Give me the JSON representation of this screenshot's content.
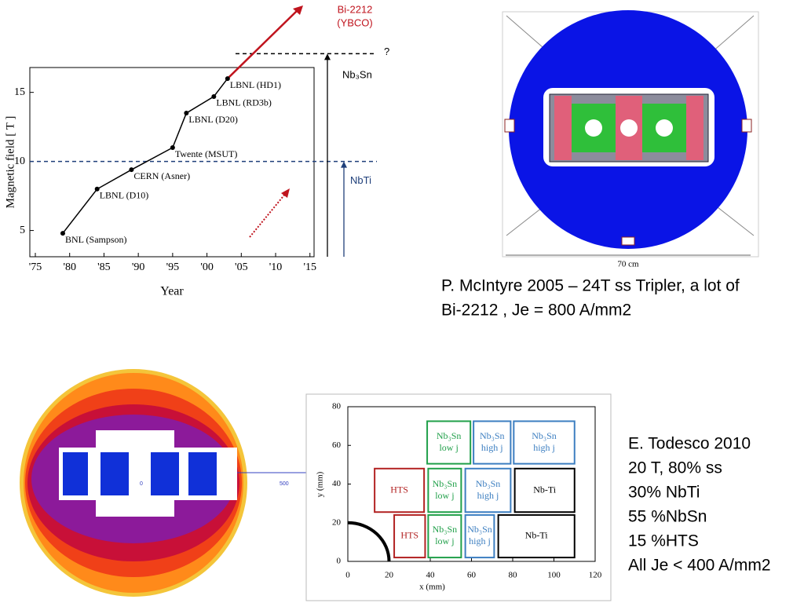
{
  "chart_data": [
    {
      "type": "line",
      "xlabel": "Year",
      "ylabel": "Magnetic field [ T ]",
      "x": [
        1979,
        1984,
        1989,
        1995,
        1997,
        2001,
        2003
      ],
      "values": [
        4.8,
        8,
        9.4,
        11,
        13.5,
        14.7,
        16
      ],
      "point_labels": [
        "BNL (Sampson)",
        "LBNL (D10)",
        "CERN (Asner)",
        "Twente (MSUT)",
        "LBNL (D20)",
        "LBNL (RD3b)",
        "LBNL (HD1)"
      ],
      "color": "#000000",
      "xlim": [
        1974.2,
        2015.6
      ],
      "ylim": [
        3.1,
        16.8
      ],
      "xticks": [
        {
          "value": 1975,
          "label": "'75"
        },
        {
          "value": 1980,
          "label": "'80"
        },
        {
          "value": 1985,
          "label": "'85"
        },
        {
          "value": 1990,
          "label": "'90"
        },
        {
          "value": 1995,
          "label": "'95"
        },
        {
          "value": 2000,
          "label": "'00"
        },
        {
          "value": 2005,
          "label": "'05"
        },
        {
          "value": 2010,
          "label": "'10"
        },
        {
          "value": 2015,
          "label": "'15"
        }
      ],
      "yticks": [
        5,
        10,
        15
      ],
      "reference_lines": [
        {
          "value": 10,
          "label": "NbTi",
          "color": "#1f3f7a"
        },
        {
          "value": 17.8,
          "label": "?",
          "color": "#000000",
          "arrow_label": "Nb₃Sn"
        }
      ],
      "trend_label": [
        "Bi-2212",
        "(YBCO)"
      ],
      "trend_color": "#c0141e"
    },
    {
      "type": "blocks",
      "xlabel": "x (mm)",
      "ylabel": "y (mm)",
      "xlim": [
        0,
        120
      ],
      "ylim": [
        0,
        80
      ],
      "xticks": [
        0,
        20,
        40,
        60,
        80,
        100,
        120
      ],
      "yticks": [
        0,
        20,
        40,
        60,
        80
      ],
      "aperture_radius": 20,
      "blocks": [
        {
          "label": [
            "HTS"
          ],
          "x": [
            13,
            37
          ],
          "y": [
            25.5,
            48
          ],
          "color": "#b22222"
        },
        {
          "label": [
            "HTS"
          ],
          "x": [
            22.5,
            37.5
          ],
          "y": [
            2,
            24
          ],
          "color": "#b22222"
        },
        {
          "label": [
            "Nb₃Sn",
            "low j"
          ],
          "x": [
            38.5,
            59.5
          ],
          "y": [
            50.5,
            72.5
          ],
          "color": "#21a04a"
        },
        {
          "label": [
            "Nb₃Sn",
            "low j"
          ],
          "x": [
            39,
            55
          ],
          "y": [
            25.5,
            48
          ],
          "color": "#21a04a"
        },
        {
          "label": [
            "Nb₃Sn",
            "low j"
          ],
          "x": [
            39,
            55
          ],
          "y": [
            2,
            24
          ],
          "color": "#21a04a"
        },
        {
          "label": [
            "Nb₃Sn",
            "high j"
          ],
          "x": [
            61,
            79
          ],
          "y": [
            50.5,
            72.5
          ],
          "color": "#3d7fc1"
        },
        {
          "label": [
            "Nb₃Sn",
            "high j"
          ],
          "x": [
            57,
            79
          ],
          "y": [
            25.5,
            48
          ],
          "color": "#3d7fc1"
        },
        {
          "label": [
            "Nb₃Sn",
            "high j"
          ],
          "x": [
            57,
            71
          ],
          "y": [
            2,
            24
          ],
          "color": "#3d7fc1"
        },
        {
          "label": [
            "Nb₃Sn",
            "high j"
          ],
          "x": [
            80.5,
            110
          ],
          "y": [
            50.5,
            72.5
          ],
          "color": "#3d7fc1"
        },
        {
          "label": [
            "Nb-Ti"
          ],
          "x": [
            81,
            110
          ],
          "y": [
            25.5,
            48
          ],
          "color": "#000000"
        },
        {
          "label": [
            "Nb-Ti"
          ],
          "x": [
            73,
            110
          ],
          "y": [
            2,
            24
          ],
          "color": "#000000"
        }
      ]
    }
  ],
  "captions": {
    "mcintyre": [
      "P. McIntyre 2005 – 24T ss Tripler, a lot of",
      "Bi-2212 , Je = 800 A/mm2"
    ],
    "todesco": [
      "E. Todesco 2010",
      "20 T, 80% ss",
      "30% NbTi",
      "55 %NbSn",
      "15 %HTS",
      "All Je < 400 A/mm2"
    ]
  },
  "figure_labels": {
    "dimension": "70 cm",
    "scale": [
      "0",
      "500"
    ]
  }
}
